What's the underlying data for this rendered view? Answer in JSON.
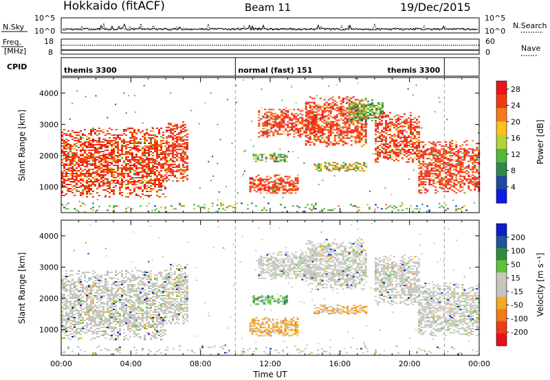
{
  "header": {
    "site": "Hokkaido (fitACF)",
    "beam": "Beam 11",
    "date": "19/Dec/2015"
  },
  "nsky": {
    "label": "N.Sky",
    "yticks": [
      "10^5",
      "10^0"
    ],
    "right_label": "N.Search",
    "right_yticks": [
      "10^5",
      "10^0"
    ]
  },
  "freq": {
    "label_top": "Freq.",
    "label_bottom": "[MHz]",
    "yticks": [
      "18",
      "8"
    ],
    "right_label": "Nave",
    "right_yticks": [
      "60",
      "0"
    ]
  },
  "cpid": {
    "label": "CPID",
    "segments": [
      {
        "name": "themis 3300",
        "start": 0,
        "end": 10
      },
      {
        "name": "normal (fast) 151",
        "start": 10,
        "end": 22
      },
      {
        "name": "themis 3300",
        "start": 22,
        "end": 24
      }
    ]
  },
  "colors": {
    "power": [
      "#0b1be8",
      "#1f49a0",
      "#2f8a4a",
      "#52b83a",
      "#b3d236",
      "#f8c11f",
      "#f77c16",
      "#f23a12",
      "#e8151a"
    ],
    "velocity": [
      "#0e1ec4",
      "#1e54a0",
      "#2a8f3e",
      "#5cc43a",
      "#c7c7c0",
      "#c5c5c0",
      "#f6a81f",
      "#f37a18",
      "#ee3c16",
      "#e81214"
    ]
  },
  "chart_data": [
    {
      "type": "heatmap",
      "title": "Power",
      "xlabel": "",
      "ylabel": "Slant Range [km]",
      "xlim": [
        0,
        24
      ],
      "ylim": [
        180,
        4500
      ],
      "xticks": [
        0,
        4,
        8,
        12,
        16,
        20,
        24
      ],
      "xticklabels": [
        "",
        "",
        "",
        "",
        "",
        "",
        ""
      ],
      "yticks": [
        1000,
        2000,
        3000,
        4000
      ],
      "yticklabels": [
        "1000",
        "2000",
        "3000",
        "4000"
      ],
      "colorbar": {
        "label": "Power [dB]",
        "ticks": [
          "4",
          "8",
          "12",
          "16",
          "20",
          "24",
          "28"
        ],
        "range": [
          0,
          30
        ]
      },
      "echo_regions": [
        {
          "t0": 0.0,
          "t1": 6.0,
          "r0": 700,
          "r1": 2900,
          "level": "high"
        },
        {
          "t0": 6.0,
          "t1": 7.3,
          "r0": 1200,
          "r1": 3100,
          "level": "high"
        },
        {
          "t0": 10.8,
          "t1": 13.6,
          "r0": 800,
          "r1": 1400,
          "level": "high"
        },
        {
          "t0": 11.0,
          "t1": 13.0,
          "r0": 1800,
          "r1": 2100,
          "level": "low"
        },
        {
          "t0": 11.3,
          "t1": 14.5,
          "r0": 2600,
          "r1": 3500,
          "level": "high"
        },
        {
          "t0": 14.0,
          "t1": 17.5,
          "r0": 2300,
          "r1": 3900,
          "level": "high"
        },
        {
          "t0": 14.5,
          "t1": 17.5,
          "r0": 1500,
          "r1": 1800,
          "level": "medium"
        },
        {
          "t0": 16.5,
          "t1": 18.5,
          "r0": 3100,
          "r1": 3800,
          "level": "low"
        },
        {
          "t0": 18.0,
          "t1": 20.5,
          "r0": 1800,
          "r1": 3400,
          "level": "high"
        },
        {
          "t0": 20.5,
          "t1": 24.0,
          "r0": 800,
          "r1": 2500,
          "level": "high"
        },
        {
          "t0": 0.0,
          "t1": 24.0,
          "r0": 200,
          "r1": 500,
          "level": "low"
        }
      ]
    },
    {
      "type": "heatmap",
      "title": "Velocity",
      "xlabel": "Time UT",
      "ylabel": "Slant Range [km]",
      "xlim": [
        0,
        24
      ],
      "ylim": [
        180,
        4500
      ],
      "xticks": [
        0,
        4,
        8,
        12,
        16,
        20,
        24
      ],
      "xticklabels": [
        "00:00",
        "04:00",
        "08:00",
        "12:00",
        "16:00",
        "20:00",
        "00:00"
      ],
      "yticks": [
        1000,
        2000,
        3000,
        4000
      ],
      "yticklabels": [
        "1000",
        "2000",
        "3000",
        "4000"
      ],
      "colorbar": {
        "label": "Velocity [m s⁻¹]",
        "ticks": [
          "200",
          "100",
          "50",
          "15",
          "-15",
          "-50",
          "-100",
          "-200"
        ],
        "range": [
          -250,
          250
        ]
      },
      "echo_regions": [
        {
          "t0": 0.0,
          "t1": 6.0,
          "r0": 700,
          "r1": 2900,
          "level": "ground"
        },
        {
          "t0": 6.0,
          "t1": 7.3,
          "r0": 1200,
          "r1": 3100,
          "level": "ground"
        },
        {
          "t0": 10.8,
          "t1": 13.6,
          "r0": 800,
          "r1": 1400,
          "level": "negative"
        },
        {
          "t0": 11.0,
          "t1": 13.0,
          "r0": 1800,
          "r1": 2100,
          "level": "positive"
        },
        {
          "t0": 11.3,
          "t1": 14.5,
          "r0": 2600,
          "r1": 3500,
          "level": "ground"
        },
        {
          "t0": 14.0,
          "t1": 17.5,
          "r0": 2300,
          "r1": 3900,
          "level": "ground"
        },
        {
          "t0": 14.5,
          "t1": 17.5,
          "r0": 1500,
          "r1": 1800,
          "level": "negative"
        },
        {
          "t0": 18.0,
          "t1": 20.5,
          "r0": 1800,
          "r1": 3400,
          "level": "ground"
        },
        {
          "t0": 20.5,
          "t1": 24.0,
          "r0": 800,
          "r1": 2500,
          "level": "ground"
        },
        {
          "t0": 0.0,
          "t1": 24.0,
          "r0": 200,
          "r1": 500,
          "level": "ground"
        }
      ]
    }
  ]
}
